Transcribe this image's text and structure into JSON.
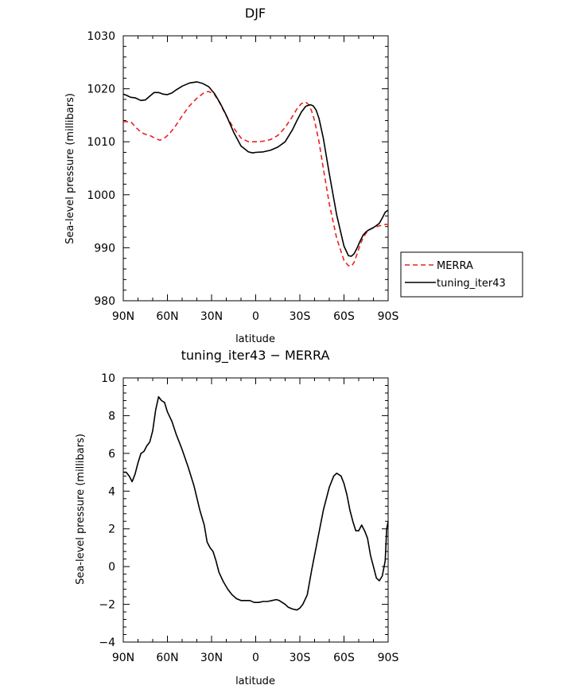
{
  "chart_data": [
    {
      "type": "line",
      "title": "DJF",
      "xlabel": "latitude",
      "ylabel": "Sea-level pressure (millibars)",
      "xlim": [
        90,
        -90
      ],
      "ylim": [
        980,
        1030
      ],
      "xticks": [
        90,
        60,
        30,
        0,
        -30,
        -60,
        -90
      ],
      "xtick_labels": [
        "90N",
        "60N",
        "30N",
        "0",
        "30S",
        "60S",
        "90S"
      ],
      "yticks": [
        980,
        990,
        1000,
        1010,
        1020,
        1030
      ],
      "ytick_labels": [
        "980",
        "990",
        "1000",
        "1010",
        "1020",
        "1030"
      ],
      "legend_position": "right",
      "series": [
        {
          "name": "MERRA",
          "color": "#e8221e",
          "dash": "dashed",
          "x": [
            90,
            85,
            81,
            78,
            75,
            72,
            68,
            65,
            62,
            59,
            55,
            50,
            45,
            40,
            35,
            32,
            28,
            25,
            20,
            15,
            10,
            5,
            0,
            -5,
            -10,
            -15,
            -20,
            -25,
            -28,
            -31,
            -34,
            -36,
            -38,
            -40,
            -43,
            -46,
            -50,
            -55,
            -60,
            -63,
            -65,
            -67,
            -69,
            -71,
            -73,
            -75,
            -78,
            -80,
            -85,
            -88,
            -90
          ],
          "y": [
            1013.8,
            1013.8,
            1012.6,
            1011.8,
            1011.4,
            1011.2,
            1010.6,
            1010.3,
            1010.7,
            1011.4,
            1012.8,
            1014.9,
            1016.8,
            1018.2,
            1019.3,
            1019.5,
            1018.9,
            1017.6,
            1014.9,
            1012.6,
            1010.7,
            1010.0,
            1010.0,
            1010.1,
            1010.4,
            1011.2,
            1012.7,
            1014.8,
            1016.2,
            1017.2,
            1017.5,
            1017.0,
            1015.8,
            1014.0,
            1010.0,
            1004.9,
            998.3,
            991.8,
            987.6,
            986.6,
            986.5,
            987.3,
            988.9,
            990.6,
            991.9,
            992.8,
            993.5,
            993.8,
            994.2,
            994.4,
            994.4
          ]
        },
        {
          "name": "tuning_iter43",
          "color": "#000000",
          "dash": "solid",
          "x": [
            90,
            88,
            85,
            82,
            78,
            75,
            72,
            69,
            66,
            63,
            60,
            57,
            54,
            50,
            45,
            40,
            36,
            32,
            28,
            24,
            20,
            15,
            10,
            5,
            2,
            0,
            -5,
            -10,
            -15,
            -20,
            -25,
            -28,
            -31,
            -34,
            -37,
            -39,
            -41,
            -43,
            -46,
            -50,
            -55,
            -60,
            -63,
            -65,
            -67,
            -69,
            -71,
            -73,
            -75,
            -77,
            -80,
            -84,
            -86,
            -88,
            -90
          ],
          "y": [
            1019.0,
            1018.8,
            1018.4,
            1018.3,
            1017.8,
            1017.9,
            1018.6,
            1019.3,
            1019.3,
            1019.0,
            1018.9,
            1019.2,
            1019.8,
            1020.5,
            1021.1,
            1021.3,
            1021.0,
            1020.4,
            1019.1,
            1017.2,
            1015.0,
            1011.8,
            1009.2,
            1008.1,
            1007.9,
            1008.0,
            1008.1,
            1008.4,
            1009.0,
            1010.0,
            1012.3,
            1014.0,
            1015.6,
            1016.7,
            1017.0,
            1016.8,
            1016.0,
            1014.4,
            1010.6,
            1004.0,
            996.2,
            990.3,
            988.5,
            988.4,
            988.9,
            990.0,
            991.3,
            992.4,
            993.0,
            993.4,
            993.8,
            994.6,
            995.6,
            996.7,
            997.1
          ]
        }
      ]
    },
    {
      "type": "line",
      "title": "tuning_iter43 − MERRA",
      "xlabel": "latitude",
      "ylabel": "Sea-level pressure (millibars)",
      "xlim": [
        90,
        -90
      ],
      "ylim": [
        -4,
        10
      ],
      "xticks": [
        90,
        60,
        30,
        0,
        -30,
        -60,
        -90
      ],
      "xtick_labels": [
        "90N",
        "60N",
        "30N",
        "0",
        "30S",
        "60S",
        "90S"
      ],
      "yticks": [
        -4,
        -2,
        0,
        2,
        4,
        6,
        8,
        10
      ],
      "ytick_labels": [
        "−4",
        "−2",
        "0",
        "2",
        "4",
        "6",
        "8",
        "10"
      ],
      "series": [
        {
          "color": "#000000",
          "dash": "solid",
          "x": [
            90,
            88,
            86,
            84,
            82,
            80,
            78,
            76,
            74,
            72,
            70,
            68,
            66,
            64,
            62,
            60,
            57,
            54,
            50,
            46,
            42,
            38,
            35,
            33,
            31,
            29,
            27,
            25,
            22,
            19,
            16,
            13,
            10,
            7,
            4,
            1,
            0,
            -2,
            -5,
            -8,
            -11,
            -14,
            -16,
            -18,
            -20,
            -22,
            -25,
            -28,
            -30,
            -32,
            -35,
            -38,
            -42,
            -46,
            -50,
            -53,
            -55,
            -58,
            -60,
            -62,
            -64,
            -66,
            -68,
            -70,
            -72,
            -74,
            -76,
            -78,
            -80,
            -82,
            -84,
            -86,
            -88,
            -89,
            -90
          ],
          "y": [
            5.0,
            5.0,
            4.8,
            4.5,
            4.9,
            5.5,
            6.0,
            6.1,
            6.4,
            6.6,
            7.2,
            8.3,
            9.0,
            8.8,
            8.7,
            8.2,
            7.7,
            7.0,
            6.2,
            5.3,
            4.3,
            3.0,
            2.2,
            1.3,
            1.0,
            0.8,
            0.3,
            -0.3,
            -0.8,
            -1.2,
            -1.5,
            -1.7,
            -1.8,
            -1.8,
            -1.8,
            -1.9,
            -1.9,
            -1.9,
            -1.85,
            -1.85,
            -1.8,
            -1.75,
            -1.8,
            -1.9,
            -2.0,
            -2.15,
            -2.25,
            -2.3,
            -2.2,
            -2.0,
            -1.5,
            -0.2,
            1.4,
            3.0,
            4.2,
            4.8,
            4.95,
            4.8,
            4.4,
            3.8,
            3.0,
            2.4,
            1.9,
            1.9,
            2.2,
            1.9,
            1.5,
            0.6,
            0.0,
            -0.6,
            -0.75,
            -0.5,
            0.3,
            2.0,
            2.4
          ]
        }
      ]
    }
  ]
}
